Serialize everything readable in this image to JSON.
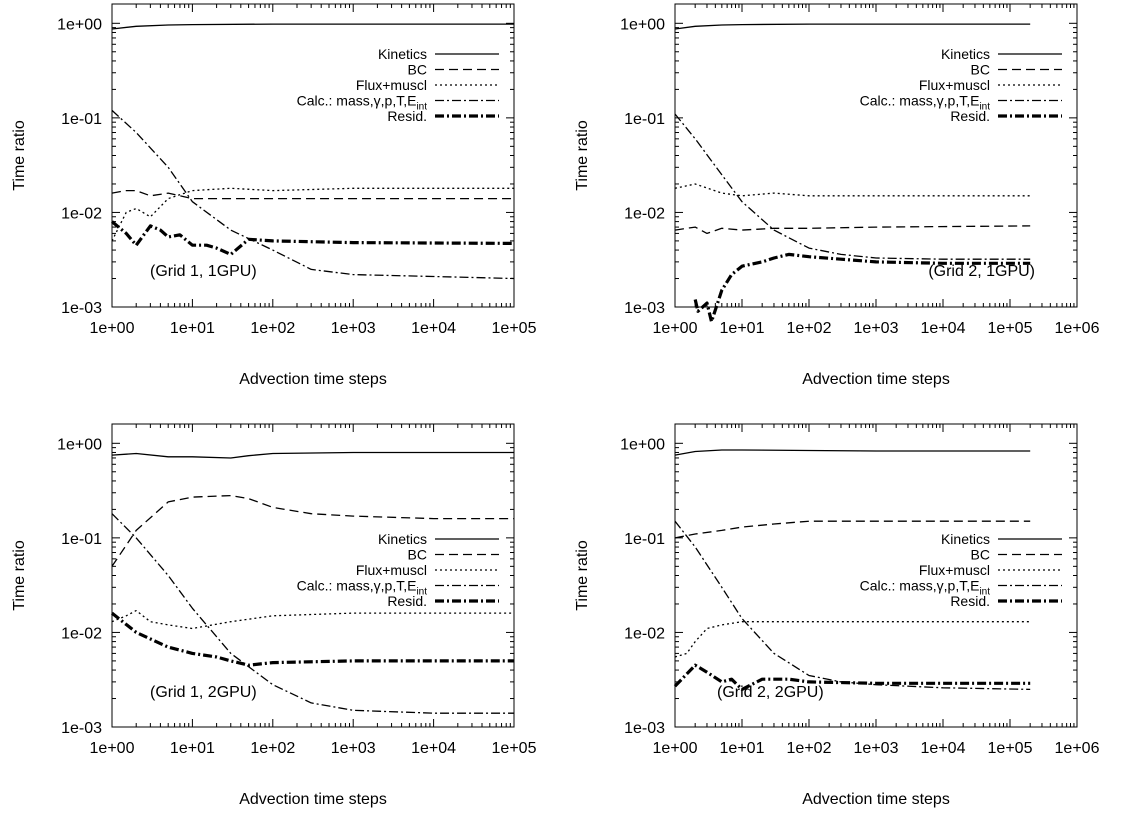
{
  "figure": {
    "x_axis_label": "Advection time steps",
    "y_axis_label": "Time ratio",
    "y_scale": "log",
    "x_scale": "log"
  },
  "legend": {
    "entries": [
      {
        "label": "Kinetics",
        "style": "solid"
      },
      {
        "label": "BC",
        "style": "dashed"
      },
      {
        "label": "Flux+muscl",
        "style": "dotted"
      },
      {
        "label": "Calc.: mass,γ,p,T,E",
        "subscript": "int",
        "style": "dashdot"
      },
      {
        "label": "Resid.",
        "style": "thick-dashdot"
      }
    ]
  },
  "chart_data": [
    {
      "type": "line",
      "annotation": "(Grid 1, 1GPU)",
      "x_scale": "log",
      "y_scale": "log",
      "xlim": [
        1,
        100000
      ],
      "ylim": [
        0.001,
        1.6
      ],
      "x_ticks": [
        "1e+00",
        "1e+01",
        "1e+02",
        "1e+03",
        "1e+04",
        "1e+05"
      ],
      "y_ticks": [
        "1e-03",
        "1e-02",
        "1e-01",
        "1e+00"
      ],
      "xlabel": "Advection time steps",
      "ylabel": "Time ratio",
      "legend_position": "top-right",
      "series": [
        {
          "name": "Kinetics",
          "style": "solid",
          "x": [
            1,
            2,
            5,
            10,
            100,
            1000,
            100000
          ],
          "y": [
            0.87,
            0.93,
            0.96,
            0.97,
            0.98,
            0.98,
            0.98
          ]
        },
        {
          "name": "BC",
          "style": "dashed",
          "x": [
            1,
            1.5,
            2,
            3,
            5,
            10,
            30,
            100,
            1000,
            100000
          ],
          "y": [
            0.016,
            0.017,
            0.017,
            0.015,
            0.016,
            0.014,
            0.014,
            0.014,
            0.014,
            0.014
          ]
        },
        {
          "name": "Flux+muscl",
          "style": "dotted",
          "x": [
            1,
            1.5,
            2,
            3,
            5,
            10,
            30,
            100,
            1000,
            100000
          ],
          "y": [
            0.005,
            0.01,
            0.011,
            0.009,
            0.014,
            0.017,
            0.018,
            0.017,
            0.018,
            0.018
          ]
        },
        {
          "name": "Calc.: mass,γ,p,T,E_int",
          "style": "dashdot",
          "x": [
            1,
            2,
            5,
            10,
            30,
            100,
            300,
            1000,
            10000,
            100000
          ],
          "y": [
            0.12,
            0.07,
            0.03,
            0.013,
            0.0065,
            0.004,
            0.0025,
            0.0022,
            0.0021,
            0.002
          ]
        },
        {
          "name": "Resid.",
          "style": "thick-dashdot",
          "x": [
            1,
            1.5,
            2,
            3,
            4,
            5,
            7,
            10,
            15,
            20,
            30,
            50,
            100,
            1000,
            100000
          ],
          "y": [
            0.008,
            0.006,
            0.0045,
            0.0072,
            0.0065,
            0.0055,
            0.0058,
            0.0045,
            0.0045,
            0.0042,
            0.0036,
            0.0052,
            0.005,
            0.0048,
            0.0047
          ]
        }
      ]
    },
    {
      "type": "line",
      "annotation": "(Grid 2, 1GPU)",
      "x_scale": "log",
      "y_scale": "log",
      "xlim": [
        1,
        1000000
      ],
      "ylim": [
        0.001,
        1.6
      ],
      "x_ticks": [
        "1e+00",
        "1e+01",
        "1e+02",
        "1e+03",
        "1e+04",
        "1e+05",
        "1e+06"
      ],
      "y_ticks": [
        "1e-03",
        "1e-02",
        "1e-01",
        "1e+00"
      ],
      "xlabel": "Advection time steps",
      "ylabel": "Time ratio",
      "legend_position": "top-right",
      "series": [
        {
          "name": "Kinetics",
          "style": "solid",
          "x": [
            1,
            2,
            5,
            10,
            100,
            1000,
            200000
          ],
          "y": [
            0.87,
            0.93,
            0.96,
            0.97,
            0.98,
            0.98,
            0.98
          ]
        },
        {
          "name": "BC",
          "style": "dashed",
          "x": [
            1,
            2,
            3,
            5,
            10,
            30,
            100,
            1000,
            200000
          ],
          "y": [
            0.0065,
            0.007,
            0.006,
            0.0068,
            0.0065,
            0.0068,
            0.0068,
            0.007,
            0.0072
          ]
        },
        {
          "name": "Flux+muscl",
          "style": "dotted",
          "x": [
            1,
            2,
            5,
            10,
            30,
            100,
            1000,
            200000
          ],
          "y": [
            0.018,
            0.02,
            0.016,
            0.015,
            0.016,
            0.015,
            0.015,
            0.015
          ]
        },
        {
          "name": "Calc.: mass,γ,p,T,E_int",
          "style": "dashdot",
          "x": [
            1,
            2,
            5,
            10,
            30,
            100,
            300,
            1000,
            10000,
            200000
          ],
          "y": [
            0.11,
            0.06,
            0.025,
            0.013,
            0.0065,
            0.0042,
            0.0036,
            0.0033,
            0.0032,
            0.0032
          ]
        },
        {
          "name": "Resid.",
          "style": "thick-dashdot",
          "x": [
            2,
            2.2,
            3,
            3.5,
            5,
            7,
            10,
            20,
            30,
            50,
            100,
            300,
            1000,
            10000,
            200000
          ],
          "y": [
            0.0012,
            0.0009,
            0.0011,
            0.0007,
            0.0015,
            0.0022,
            0.0027,
            0.003,
            0.0033,
            0.0036,
            0.0034,
            0.0032,
            0.003,
            0.0029,
            0.0029
          ]
        }
      ]
    },
    {
      "type": "line",
      "annotation": "(Grid 1, 2GPU)",
      "x_scale": "log",
      "y_scale": "log",
      "xlim": [
        1,
        100000
      ],
      "ylim": [
        0.001,
        1.6
      ],
      "x_ticks": [
        "1e+00",
        "1e+01",
        "1e+02",
        "1e+03",
        "1e+04",
        "1e+05"
      ],
      "y_ticks": [
        "1e-03",
        "1e-02",
        "1e-01",
        "1e+00"
      ],
      "xlabel": "Advection time steps",
      "ylabel": "Time ratio",
      "legend_position": "right",
      "series": [
        {
          "name": "Kinetics",
          "style": "solid",
          "x": [
            1,
            2,
            5,
            10,
            30,
            50,
            100,
            1000,
            100000
          ],
          "y": [
            0.75,
            0.78,
            0.72,
            0.72,
            0.7,
            0.74,
            0.78,
            0.8,
            0.8
          ]
        },
        {
          "name": "BC",
          "style": "dashed",
          "x": [
            1,
            2,
            5,
            10,
            30,
            50,
            100,
            300,
            1000,
            10000,
            100000
          ],
          "y": [
            0.05,
            0.12,
            0.24,
            0.27,
            0.28,
            0.26,
            0.21,
            0.18,
            0.17,
            0.16,
            0.16
          ]
        },
        {
          "name": "Flux+muscl",
          "style": "dotted",
          "x": [
            1,
            1.5,
            2,
            3,
            5,
            10,
            30,
            100,
            1000,
            100000
          ],
          "y": [
            0.013,
            0.015,
            0.017,
            0.013,
            0.012,
            0.011,
            0.013,
            0.015,
            0.016,
            0.016
          ]
        },
        {
          "name": "Calc.: mass,γ,p,T,E_int",
          "style": "dashdot",
          "x": [
            1,
            2,
            5,
            10,
            30,
            100,
            300,
            1000,
            10000,
            100000
          ],
          "y": [
            0.18,
            0.1,
            0.04,
            0.018,
            0.006,
            0.0028,
            0.0018,
            0.0015,
            0.0014,
            0.0014
          ]
        },
        {
          "name": "Resid.",
          "style": "thick-dashdot",
          "x": [
            1,
            2,
            5,
            10,
            20,
            30,
            50,
            100,
            1000,
            100000
          ],
          "y": [
            0.016,
            0.01,
            0.007,
            0.006,
            0.0055,
            0.005,
            0.0045,
            0.0048,
            0.005,
            0.005
          ]
        }
      ]
    },
    {
      "type": "line",
      "annotation": "(Grid 2, 2GPU)",
      "x_scale": "log",
      "y_scale": "log",
      "xlim": [
        1,
        1000000
      ],
      "ylim": [
        0.001,
        1.6
      ],
      "x_ticks": [
        "1e+00",
        "1e+01",
        "1e+02",
        "1e+03",
        "1e+04",
        "1e+05",
        "1e+06"
      ],
      "y_ticks": [
        "1e-03",
        "1e-02",
        "1e-01",
        "1e+00"
      ],
      "xlabel": "Advection time steps",
      "ylabel": "Time ratio",
      "legend_position": "right",
      "series": [
        {
          "name": "Kinetics",
          "style": "solid",
          "x": [
            1,
            2,
            5,
            10,
            100,
            1000,
            200000
          ],
          "y": [
            0.75,
            0.82,
            0.85,
            0.85,
            0.84,
            0.83,
            0.83
          ]
        },
        {
          "name": "BC",
          "style": "dashed",
          "x": [
            1,
            2,
            5,
            10,
            30,
            100,
            1000,
            200000
          ],
          "y": [
            0.1,
            0.11,
            0.12,
            0.13,
            0.14,
            0.15,
            0.15,
            0.15
          ]
        },
        {
          "name": "Flux+muscl",
          "style": "dotted",
          "x": [
            1,
            1.5,
            2,
            3,
            5,
            10,
            30,
            100,
            1000,
            200000
          ],
          "y": [
            0.0055,
            0.006,
            0.008,
            0.011,
            0.012,
            0.013,
            0.013,
            0.013,
            0.013,
            0.013
          ]
        },
        {
          "name": "Calc.: mass,γ,p,T,E_int",
          "style": "dashdot",
          "x": [
            1,
            2,
            5,
            10,
            30,
            100,
            300,
            1000,
            10000,
            200000
          ],
          "y": [
            0.15,
            0.08,
            0.03,
            0.014,
            0.006,
            0.0035,
            0.003,
            0.0028,
            0.0026,
            0.0025
          ]
        },
        {
          "name": "Resid.",
          "style": "thick-dashdot",
          "x": [
            1,
            2,
            3,
            5,
            7,
            10,
            20,
            50,
            100,
            1000,
            200000
          ],
          "y": [
            0.0027,
            0.0045,
            0.0038,
            0.003,
            0.0032,
            0.0025,
            0.0032,
            0.0032,
            0.003,
            0.0029,
            0.0029
          ]
        }
      ]
    }
  ]
}
